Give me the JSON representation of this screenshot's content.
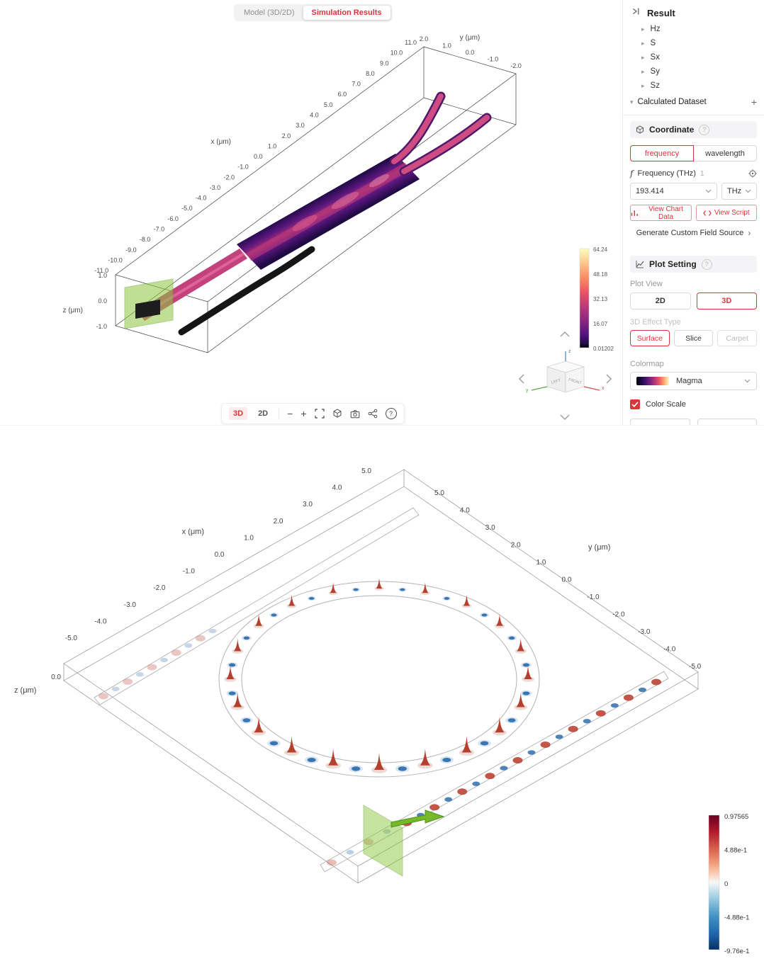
{
  "colors": {
    "accent_red": "#d9363c",
    "source_green": "#8dc63f"
  },
  "icons": {
    "tree_collapsed": "▸",
    "tree_expanded": "▾",
    "help": "?",
    "plus": "+",
    "minus": "−",
    "zoom_plus": "+",
    "chevron_right": "›"
  },
  "header": {
    "tabs": [
      {
        "label": "Model (3D/2D)"
      },
      {
        "label": "Simulation Results"
      }
    ]
  },
  "sidebar": {
    "title": "Result",
    "tree": [
      "Hz",
      "S",
      "Sx",
      "Sy",
      "Sz"
    ],
    "calculated_dataset_label": "Calculated Dataset",
    "coordinate": {
      "title": "Coordinate",
      "mode_tabs": [
        "frequency",
        "wavelength"
      ],
      "field_prefix": "f",
      "field_label": "Frequency (THz)",
      "field_count": "1",
      "value": "193.414",
      "unit": "THz",
      "view_chart_data": "View Chart Data",
      "view_script": "View Script",
      "generate_link": "Generate Custom Field Source"
    },
    "plot_setting": {
      "title": "Plot Setting",
      "plot_view_label": "Plot View",
      "plot_view_options": [
        "2D",
        "3D"
      ],
      "effect_label": "3D Effect Type",
      "effect_options": [
        "Surface",
        "Slice",
        "Carpet"
      ],
      "colormap_label": "Colormap",
      "colormap": "Magma",
      "color_scale_label": "Color Scale"
    }
  },
  "viewer": {
    "mode_3d": "3D",
    "mode_2d": "2D",
    "nav_cube": {
      "left": "LEFT",
      "front": "FRONT",
      "x": "x",
      "y": "y",
      "z": "z"
    }
  },
  "top_plot": {
    "x_axis": {
      "title": "x (μm)",
      "ticks": [
        "11.0",
        "10.0",
        "9.0",
        "8.0",
        "7.0",
        "6.0",
        "5.0",
        "4.0",
        "3.0",
        "2.0",
        "1.0",
        "0.0",
        "-1.0",
        "-2.0",
        "-3.0",
        "-4.0",
        "-5.0",
        "-6.0",
        "-7.0",
        "-8.0",
        "-9.0",
        "-10.0",
        "-11.0"
      ]
    },
    "y_axis": {
      "title": "y (μm)",
      "ticks": [
        "2.0",
        "1.0",
        "0.0",
        "-1.0",
        "-2.0"
      ]
    },
    "z_axis": {
      "title": "z (μm)",
      "ticks": [
        "1.0",
        "0.0",
        "-1.0"
      ]
    },
    "colorbar": {
      "ticks": [
        "64.24",
        "48.18",
        "32.13",
        "16.07",
        "0.01202"
      ]
    }
  },
  "bottom_plot": {
    "x_axis": {
      "title": "x (μm)",
      "ticks": [
        "5.0",
        "4.0",
        "3.0",
        "2.0",
        "1.0",
        "0.0",
        "-1.0",
        "-2.0",
        "-3.0",
        "-4.0",
        "-5.0"
      ]
    },
    "y_axis": {
      "title": "y (μm)",
      "ticks": [
        "5.0",
        "4.0",
        "3.0",
        "2.0",
        "1.0",
        "0.0",
        "-1.0",
        "-2.0",
        "-3.0",
        "-4.0",
        "-5.0"
      ]
    },
    "z_axis": {
      "title": "z (μm)",
      "ticks": [
        "0.0"
      ]
    },
    "colorbar": {
      "ticks": [
        "0.97565",
        "4.88e-1",
        "0",
        "-4.88e-1",
        "-9.76e-1"
      ]
    }
  }
}
